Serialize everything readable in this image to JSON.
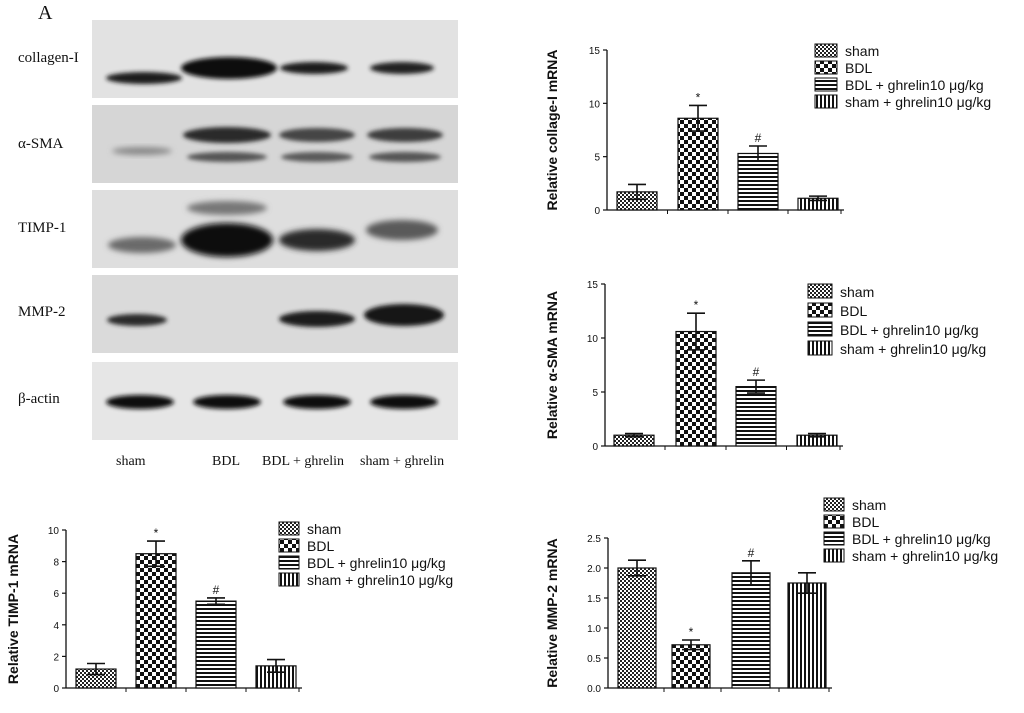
{
  "panel_label": "A",
  "blot": {
    "markers": [
      "collagen-I",
      "α-SMA",
      "TIMP-1",
      "MMP-2",
      "β-actin"
    ],
    "lanes": [
      "sham",
      "BDL",
      "BDL + ghrelin",
      "sham + ghrelin"
    ]
  },
  "chart_data": [
    {
      "type": "bar",
      "categories": [
        "sham",
        "BDL",
        "BDL + ghrelin10 μg/kg",
        "sham + ghrelin10 μg/kg"
      ],
      "values": [
        1.7,
        8.6,
        5.3,
        1.1
      ],
      "errors": [
        0.7,
        1.2,
        0.7,
        0.2
      ],
      "annotations": [
        "",
        "*",
        "#",
        ""
      ],
      "ylabel": "Relative collage-I mRNA",
      "yticks": [
        "0",
        "5",
        "10",
        "15"
      ],
      "ylim": [
        0,
        15
      ],
      "legend": [
        "sham",
        "BDL",
        "BDL + ghrelin10 μg/kg",
        "sham + ghrelin10 μg/kg"
      ],
      "legend_position": "top-right"
    },
    {
      "type": "bar",
      "categories": [
        "sham",
        "BDL",
        "BDL + ghrelin10 μg/kg",
        "sham + ghrelin10 μg/kg"
      ],
      "values": [
        1.0,
        10.6,
        5.5,
        1.0
      ],
      "errors": [
        0.15,
        1.7,
        0.6,
        0.15
      ],
      "annotations": [
        "",
        "*",
        "#",
        ""
      ],
      "ylabel": "Relative α-SMA mRNA",
      "yticks": [
        "0",
        "5",
        "10",
        "15"
      ],
      "ylim": [
        0,
        15
      ],
      "legend": [
        "sham",
        "BDL",
        "BDL + ghrelin10 μg/kg",
        "sham + ghrelin10 μg/kg"
      ],
      "legend_position": "top-right"
    },
    {
      "type": "bar",
      "categories": [
        "sham",
        "BDL",
        "BDL + ghrelin10 μg/kg",
        "sham + ghrelin10 μg/kg"
      ],
      "values": [
        1.2,
        8.5,
        5.5,
        1.4
      ],
      "errors": [
        0.35,
        0.8,
        0.2,
        0.4
      ],
      "annotations": [
        "",
        "*",
        "#",
        ""
      ],
      "ylabel": "Relative TIMP-1 mRNA",
      "yticks": [
        "0",
        "2",
        "4",
        "6",
        "8",
        "10"
      ],
      "ylim": [
        0,
        10
      ],
      "legend": [
        "sham",
        "BDL",
        "BDL + ghrelin10 μg/kg",
        "sham + ghrelin10 μg/kg"
      ],
      "legend_position": "top-right"
    },
    {
      "type": "bar",
      "categories": [
        "sham",
        "BDL",
        "BDL + ghrelin10 μg/kg",
        "sham + ghrelin10 μg/kg"
      ],
      "values": [
        2.0,
        0.72,
        1.92,
        1.75
      ],
      "errors": [
        0.13,
        0.08,
        0.2,
        0.17
      ],
      "annotations": [
        "",
        "*",
        "#",
        ""
      ],
      "ylabel": "Relative MMP-2 mRNA",
      "yticks": [
        "0.0",
        "0.5",
        "1.0",
        "1.5",
        "2.0",
        "2.5"
      ],
      "ylim": [
        0,
        2.5
      ],
      "legend": [
        "sham",
        "BDL",
        "BDL + ghrelin10 μg/kg",
        "sham + ghrelin10 μg/kg"
      ],
      "legend_position": "top-right"
    }
  ]
}
